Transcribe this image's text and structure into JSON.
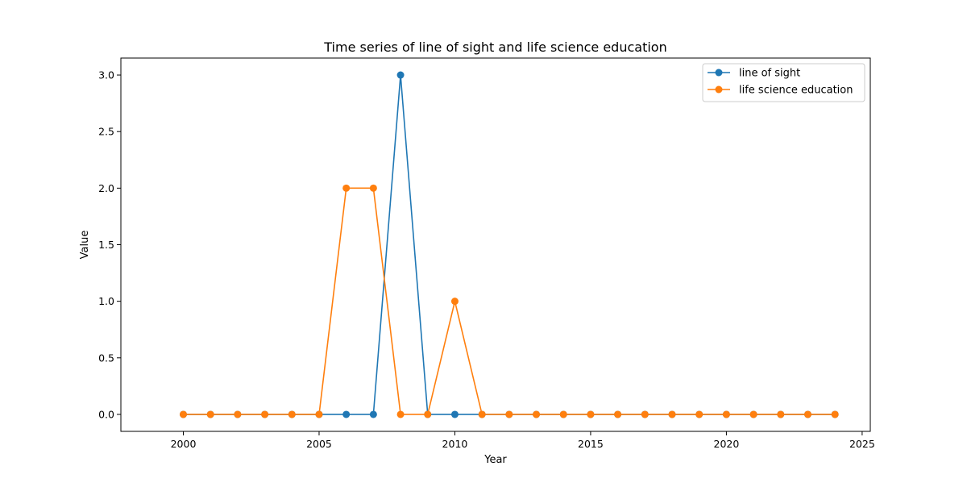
{
  "chart_data": {
    "type": "line",
    "title": "Time series of line of sight and life science education",
    "xlabel": "Year",
    "ylabel": "Value",
    "xlim": [
      1997.7,
      2025.3
    ],
    "ylim": [
      -0.15,
      3.15
    ],
    "xticks": [
      2000,
      2005,
      2010,
      2015,
      2020,
      2025
    ],
    "xtick_labels": [
      "2000",
      "2005",
      "2010",
      "2015",
      "2020",
      "2025"
    ],
    "yticks": [
      0.0,
      0.5,
      1.0,
      1.5,
      2.0,
      2.5,
      3.0
    ],
    "ytick_labels": [
      "0.0",
      "0.5",
      "1.0",
      "1.5",
      "2.0",
      "2.5",
      "3.0"
    ],
    "grid": false,
    "legend_position": "top-right",
    "x": [
      2000,
      2001,
      2002,
      2003,
      2004,
      2005,
      2006,
      2007,
      2008,
      2009,
      2010,
      2011,
      2012,
      2013,
      2014,
      2015,
      2016,
      2017,
      2018,
      2019,
      2020,
      2021,
      2022,
      2023,
      2024
    ],
    "series": [
      {
        "name": "line of sight",
        "color": "#1f77b4",
        "marker": "circle",
        "values": [
          0,
          0,
          0,
          0,
          0,
          0,
          0,
          0,
          3,
          0,
          0,
          0,
          0,
          0,
          0,
          0,
          0,
          0,
          0,
          0,
          0,
          0,
          0,
          0,
          0
        ]
      },
      {
        "name": "life science education",
        "color": "#ff7f0e",
        "marker": "circle",
        "values": [
          0,
          0,
          0,
          0,
          0,
          0,
          2,
          2,
          0,
          0,
          1,
          0,
          0,
          0,
          0,
          0,
          0,
          0,
          0,
          0,
          0,
          0,
          0,
          0,
          0
        ]
      }
    ]
  }
}
